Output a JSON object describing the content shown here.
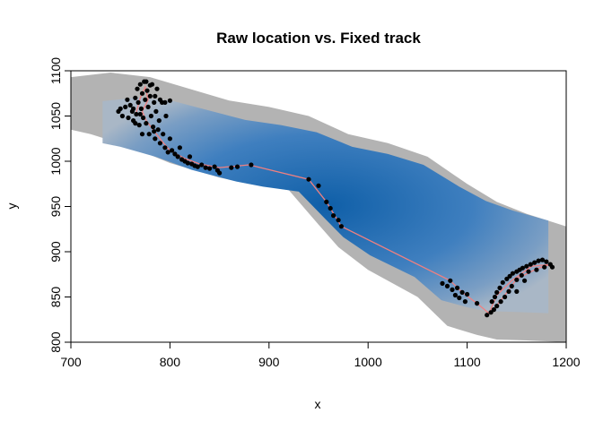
{
  "chart_data": {
    "type": "scatter",
    "title": "Raw location vs. Fixed track",
    "xlabel": "x",
    "ylabel": "y",
    "xlim": [
      700,
      1200
    ],
    "ylim": [
      800,
      1100
    ],
    "x_ticks": [
      700,
      800,
      900,
      1000,
      1100,
      1200
    ],
    "y_ticks": [
      800,
      850,
      900,
      950,
      1000,
      1050,
      1100
    ],
    "x_tick_labels": [
      "700",
      "800",
      "900",
      "1000",
      "1100",
      "1200"
    ],
    "y_tick_labels": [
      "800",
      "850",
      "900",
      "950",
      "1000",
      "1050",
      "1100"
    ],
    "grid": false,
    "legend": "none",
    "colors": {
      "points": "#000000",
      "track": "#f08080",
      "habitat_edge": "#b3b3b3",
      "habitat_core": "#0f5fa8"
    },
    "background_raster": {
      "description": "habitat density surface",
      "boundary_upper": [
        [
          700,
          1093
        ],
        [
          740,
          1098
        ],
        [
          780,
          1093
        ],
        [
          820,
          1080
        ],
        [
          860,
          1067
        ],
        [
          900,
          1060
        ],
        [
          940,
          1050
        ],
        [
          980,
          1030
        ],
        [
          1020,
          1020
        ],
        [
          1060,
          1005
        ],
        [
          1100,
          975
        ],
        [
          1130,
          955
        ],
        [
          1160,
          942
        ],
        [
          1200,
          928
        ]
      ],
      "boundary_lower": [
        [
          1200,
          800
        ],
        [
          1160,
          802
        ],
        [
          1130,
          803
        ],
        [
          1110,
          808
        ],
        [
          1080,
          818
        ],
        [
          1050,
          850
        ],
        [
          1000,
          880
        ],
        [
          970,
          905
        ],
        [
          950,
          930
        ],
        [
          920,
          968
        ],
        [
          880,
          975
        ],
        [
          850,
          982
        ],
        [
          800,
          998
        ],
        [
          760,
          1016
        ],
        [
          720,
          1030
        ],
        [
          700,
          1035
        ]
      ],
      "core_center": [
        1020,
        960
      ]
    },
    "series": [
      {
        "kind": "points",
        "points": [
          [
            748,
            1055
          ],
          [
            750,
            1058
          ],
          [
            752,
            1050
          ],
          [
            755,
            1060
          ],
          [
            758,
            1048
          ],
          [
            760,
            1062
          ],
          [
            762,
            1055
          ],
          [
            763,
            1045
          ],
          [
            765,
            1070
          ],
          [
            766,
            1052
          ],
          [
            767,
            1080
          ],
          [
            768,
            1065
          ],
          [
            769,
            1040
          ],
          [
            770,
            1085
          ],
          [
            771,
            1058
          ],
          [
            772,
            1075
          ],
          [
            773,
            1048
          ],
          [
            774,
            1088
          ],
          [
            775,
            1068
          ],
          [
            776,
            1042
          ],
          [
            777,
            1078
          ],
          [
            778,
            1060
          ],
          [
            779,
            1030
          ],
          [
            780,
            1072
          ],
          [
            781,
            1050
          ],
          [
            782,
            1085
          ],
          [
            783,
            1038
          ],
          [
            784,
            1065
          ],
          [
            785,
            1025
          ],
          [
            786,
            1055
          ],
          [
            787,
            1080
          ],
          [
            788,
            1035
          ],
          [
            789,
            1045
          ],
          [
            790,
            1020
          ],
          [
            792,
            1065
          ],
          [
            793,
            1030
          ],
          [
            795,
            1015
          ],
          [
            796,
            1050
          ],
          [
            798,
            1010
          ],
          [
            800,
            1025
          ],
          [
            802,
            1012
          ],
          [
            805,
            1008
          ],
          [
            808,
            1005
          ],
          [
            810,
            1015
          ],
          [
            812,
            1002
          ],
          [
            815,
            1000
          ],
          [
            818,
            998
          ],
          [
            820,
            1005
          ],
          [
            822,
            997
          ],
          [
            825,
            995
          ],
          [
            828,
            994
          ],
          [
            832,
            996
          ],
          [
            836,
            993
          ],
          [
            840,
            992
          ],
          [
            845,
            994
          ],
          [
            848,
            990
          ],
          [
            850,
            987
          ],
          [
            862,
            993
          ],
          [
            868,
            994
          ],
          [
            882,
            996
          ],
          [
            795,
            1065
          ],
          [
            800,
            1067
          ],
          [
            790,
            1068
          ],
          [
            785,
            1072
          ],
          [
            776,
            1088
          ],
          [
            780,
            1084
          ],
          [
            770,
            1052
          ],
          [
            763,
            1058
          ],
          [
            757,
            1068
          ],
          [
            772,
            1030
          ],
          [
            784,
            1033
          ],
          [
            765,
            1042
          ],
          [
            940,
            980
          ],
          [
            950,
            973
          ],
          [
            958,
            955
          ],
          [
            962,
            948
          ],
          [
            965,
            940
          ],
          [
            970,
            935
          ],
          [
            973,
            928
          ],
          [
            1075,
            865
          ],
          [
            1080,
            862
          ],
          [
            1083,
            868
          ],
          [
            1085,
            858
          ],
          [
            1088,
            852
          ],
          [
            1090,
            860
          ],
          [
            1092,
            849
          ],
          [
            1095,
            855
          ],
          [
            1098,
            845
          ],
          [
            1100,
            853
          ],
          [
            1110,
            843
          ],
          [
            1120,
            830
          ],
          [
            1124,
            833
          ],
          [
            1125,
            845
          ],
          [
            1128,
            850
          ],
          [
            1130,
            855
          ],
          [
            1133,
            860
          ],
          [
            1136,
            866
          ],
          [
            1140,
            870
          ],
          [
            1143,
            873
          ],
          [
            1146,
            876
          ],
          [
            1150,
            878
          ],
          [
            1153,
            880
          ],
          [
            1156,
            882
          ],
          [
            1160,
            884
          ],
          [
            1164,
            886
          ],
          [
            1168,
            888
          ],
          [
            1172,
            890
          ],
          [
            1176,
            891
          ],
          [
            1180,
            889
          ],
          [
            1184,
            886
          ],
          [
            1186,
            883
          ],
          [
            1178,
            883
          ],
          [
            1170,
            880
          ],
          [
            1162,
            878
          ],
          [
            1155,
            874
          ],
          [
            1150,
            869
          ],
          [
            1145,
            862
          ],
          [
            1142,
            856
          ],
          [
            1138,
            850
          ],
          [
            1134,
            845
          ],
          [
            1130,
            840
          ],
          [
            1127,
            836
          ],
          [
            1150,
            856
          ],
          [
            1158,
            868
          ]
        ]
      },
      {
        "kind": "line",
        "points": [
          [
            765,
            1050
          ],
          [
            770,
            1070
          ],
          [
            775,
            1082
          ],
          [
            778,
            1068
          ],
          [
            772,
            1055
          ],
          [
            776,
            1045
          ],
          [
            785,
            1032
          ],
          [
            792,
            1022
          ],
          [
            800,
            1012
          ],
          [
            815,
            1003
          ],
          [
            830,
            997
          ],
          [
            850,
            993
          ],
          [
            880,
            996
          ],
          [
            940,
            980
          ],
          [
            958,
            955
          ],
          [
            973,
            928
          ],
          [
            1083,
            868
          ],
          [
            1095,
            855
          ],
          [
            1110,
            843
          ],
          [
            1122,
            832
          ],
          [
            1130,
            852
          ],
          [
            1145,
            868
          ],
          [
            1165,
            884
          ],
          [
            1184,
            886
          ],
          [
            1170,
            881
          ],
          [
            1150,
            870
          ],
          [
            1138,
            852
          ],
          [
            1128,
            838
          ]
        ]
      }
    ]
  }
}
